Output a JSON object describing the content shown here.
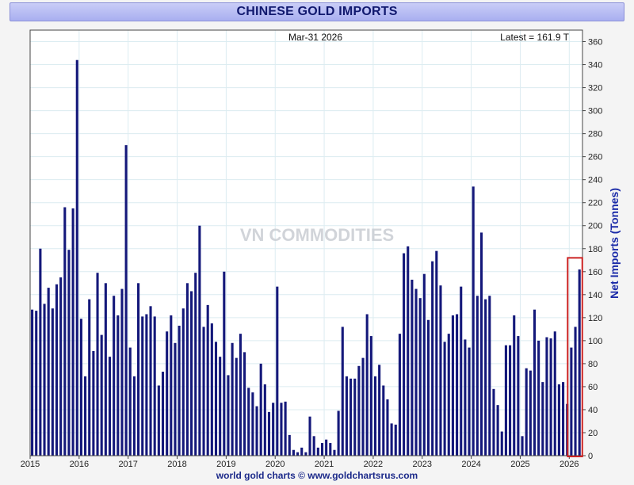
{
  "header": {
    "title": "CHINESE GOLD IMPORTS"
  },
  "footer": {
    "credit": "world gold charts © www.goldchartsrus.com"
  },
  "watermark": {
    "text": "VN COMMODITIES"
  },
  "colors": {
    "bar": "#14187a",
    "axis_label": "#1a2aa8",
    "highlight": "#cc2222",
    "watermark": "#bfe6da"
  },
  "chart_data": {
    "type": "bar",
    "title": "CHINESE GOLD IMPORTS",
    "date_label": "Mar-31  2026",
    "latest_label": "Latest = 161.9 T",
    "ylabel": "Net Imports (Tonnes)",
    "ylim": [
      0,
      370
    ],
    "yticks": [
      0,
      20,
      40,
      60,
      80,
      100,
      120,
      140,
      160,
      180,
      200,
      220,
      240,
      260,
      280,
      300,
      320,
      340,
      360
    ],
    "y_axis_side": "right",
    "xlim": [
      2015,
      2026.27
    ],
    "xticks": [
      "2015",
      "2016",
      "2017",
      "2018",
      "2019",
      "2020",
      "2021",
      "2022",
      "2023",
      "2024",
      "2025",
      "2026"
    ],
    "grid": true,
    "highlight_range": [
      "2026-01",
      "2026-03"
    ],
    "start_month": "2015-01",
    "values": [
      127,
      126,
      180,
      132,
      146,
      128,
      149,
      155,
      216,
      179,
      215,
      344,
      119,
      69,
      136,
      91,
      159,
      105,
      150,
      86,
      139,
      122,
      145,
      270,
      94,
      69,
      150,
      121,
      123,
      130,
      121,
      61,
      73,
      108,
      122,
      98,
      113,
      128,
      150,
      143,
      159,
      200,
      112,
      131,
      115,
      99,
      86,
      160,
      70,
      98,
      85,
      106,
      90,
      59,
      55,
      43,
      80,
      62,
      38,
      46,
      147,
      46,
      47,
      18,
      5,
      3,
      7,
      3,
      34,
      17,
      7,
      11,
      14,
      11,
      5,
      39,
      112,
      69,
      67,
      67,
      78,
      85,
      123,
      104,
      69,
      79,
      61,
      49,
      28,
      27,
      106,
      176,
      182,
      153,
      145,
      137,
      158,
      118,
      169,
      178,
      148,
      99,
      106,
      122,
      123,
      147,
      101,
      94,
      234,
      139,
      194,
      136,
      139,
      58,
      44,
      21,
      96,
      96,
      122,
      104,
      17,
      76,
      74,
      127,
      100,
      64,
      103,
      102,
      108,
      62,
      64,
      45,
      94,
      112,
      161.9
    ]
  }
}
